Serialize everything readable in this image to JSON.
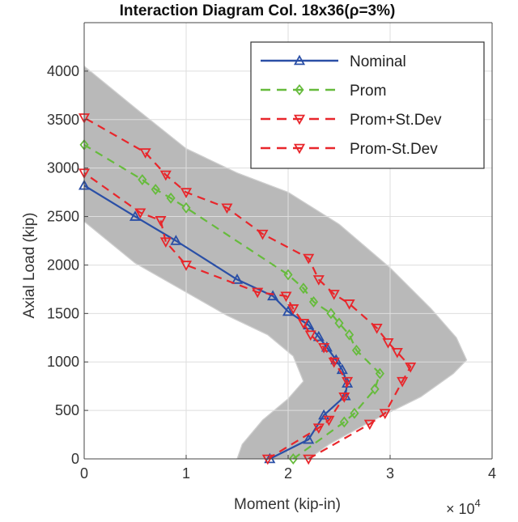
{
  "chart_data": {
    "type": "line",
    "title": "Interaction Diagram Col. 18x36(ρ=3%)",
    "xlabel": "Moment (kip-in)",
    "ylabel": "Axial Load (kip)",
    "x_exponent_label": "× 10",
    "x_exponent_power": "4",
    "xlim": [
      0,
      40000
    ],
    "ylim": [
      0,
      4500
    ],
    "x_ticks": [
      0,
      10000,
      20000,
      30000,
      40000
    ],
    "x_tick_labels": [
      "0",
      "1",
      "2",
      "3",
      "4"
    ],
    "y_ticks": [
      0,
      500,
      1000,
      1500,
      2000,
      2500,
      3000,
      3500,
      4000
    ],
    "y_tick_labels": [
      "0",
      "500",
      "1000",
      "1500",
      "2000",
      "2500",
      "3000",
      "3500",
      "4000"
    ],
    "grid": true,
    "legend_position": "top-right",
    "colors": {
      "simulations": "#b9b9b9",
      "Nominal": "#2a4fa6",
      "Prom": "#66bb3c",
      "Prom+St.Dev": "#e8262b",
      "Prom-St.Dev": "#e8262b",
      "grid": "#dedede",
      "axis": "#444444"
    },
    "simulation_band": {
      "outer": [
        [
          0,
          4050
        ],
        [
          5000,
          3620
        ],
        [
          10000,
          3200
        ],
        [
          15000,
          2950
        ],
        [
          20000,
          2750
        ],
        [
          25000,
          2420
        ],
        [
          30000,
          1970
        ],
        [
          34000,
          1550
        ],
        [
          36500,
          1250
        ],
        [
          37500,
          1020
        ],
        [
          36200,
          880
        ],
        [
          33000,
          640
        ],
        [
          28000,
          380
        ],
        [
          24000,
          150
        ],
        [
          22000,
          0
        ]
      ],
      "inner": [
        [
          0,
          2450
        ],
        [
          5000,
          2020
        ],
        [
          10000,
          1720
        ],
        [
          14000,
          1480
        ],
        [
          18000,
          1280
        ],
        [
          20500,
          1060
        ],
        [
          21500,
          800
        ],
        [
          20000,
          620
        ],
        [
          17500,
          400
        ],
        [
          15500,
          150
        ],
        [
          15000,
          0
        ]
      ]
    },
    "series": [
      {
        "name": "Nominal",
        "marker": "triangle-up",
        "dash": "solid",
        "x": [
          18200,
          22000,
          23500,
          25600,
          25800,
          25300,
          24700,
          23800,
          23000,
          22000,
          20000,
          18500,
          15000,
          9000,
          5000,
          0
        ],
        "y": [
          0,
          200,
          450,
          650,
          780,
          920,
          1020,
          1150,
          1260,
          1380,
          1520,
          1680,
          1850,
          2250,
          2500,
          2820
        ]
      },
      {
        "name": "Prom",
        "marker": "diamond",
        "dash": "dashed",
        "x": [
          20500,
          25500,
          26500,
          28500,
          29000,
          26700,
          26000,
          25000,
          24200,
          22500,
          21500,
          20000,
          10000,
          8500,
          7000,
          5700,
          0
        ],
        "y": [
          0,
          380,
          470,
          720,
          880,
          1120,
          1280,
          1400,
          1500,
          1620,
          1760,
          1900,
          2590,
          2690,
          2780,
          2880,
          3240
        ]
      },
      {
        "name": "Prom+St.Dev",
        "marker": "triangle-down",
        "dash": "dashed",
        "x": [
          22000,
          28000,
          29500,
          31200,
          32000,
          30700,
          29800,
          28700,
          26000,
          24500,
          23000,
          22000,
          17500,
          14000,
          10000,
          8000,
          6000,
          0
        ],
        "y": [
          0,
          360,
          470,
          800,
          950,
          1100,
          1200,
          1350,
          1600,
          1700,
          1850,
          2070,
          2320,
          2590,
          2750,
          2930,
          3160,
          3520
        ]
      },
      {
        "name": "Prom-St.Dev",
        "marker": "triangle-down",
        "dash": "dashed",
        "x": [
          18000,
          23000,
          24000,
          25500,
          25800,
          24500,
          23500,
          22200,
          21500,
          20500,
          19800,
          17000,
          10000,
          8000,
          7500,
          5500,
          0
        ],
        "y": [
          0,
          320,
          400,
          640,
          800,
          1000,
          1150,
          1280,
          1400,
          1550,
          1680,
          1720,
          2000,
          2240,
          2460,
          2540,
          2950
        ]
      }
    ]
  }
}
